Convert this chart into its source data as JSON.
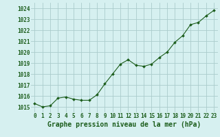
{
  "x": [
    0,
    1,
    2,
    3,
    4,
    5,
    6,
    7,
    8,
    9,
    10,
    11,
    12,
    13,
    14,
    15,
    16,
    17,
    18,
    19,
    20,
    21,
    22,
    23
  ],
  "y": [
    1015.3,
    1015.0,
    1015.1,
    1015.8,
    1015.9,
    1015.7,
    1015.6,
    1015.6,
    1016.1,
    1017.1,
    1018.0,
    1018.9,
    1019.3,
    1018.8,
    1018.7,
    1018.9,
    1019.5,
    1020.0,
    1020.9,
    1021.5,
    1022.5,
    1022.7,
    1023.3,
    1023.8
  ],
  "line_color": "#1a5c1a",
  "marker": "D",
  "marker_size": 2.0,
  "bg_color": "#d6f0f0",
  "grid_color": "#aacccc",
  "xlabel": "Graphe pression niveau de la mer (hPa)",
  "xlabel_color": "#1a5c1a",
  "xlabel_fontsize": 7.0,
  "tick_color": "#1a5c1a",
  "tick_fontsize": 5.5,
  "ylim": [
    1014.5,
    1024.5
  ],
  "yticks": [
    1015,
    1016,
    1017,
    1018,
    1019,
    1020,
    1021,
    1022,
    1023,
    1024
  ],
  "xlim": [
    -0.5,
    23.5
  ],
  "xticks": [
    0,
    1,
    2,
    3,
    4,
    5,
    6,
    7,
    8,
    9,
    10,
    11,
    12,
    13,
    14,
    15,
    16,
    17,
    18,
    19,
    20,
    21,
    22,
    23
  ]
}
